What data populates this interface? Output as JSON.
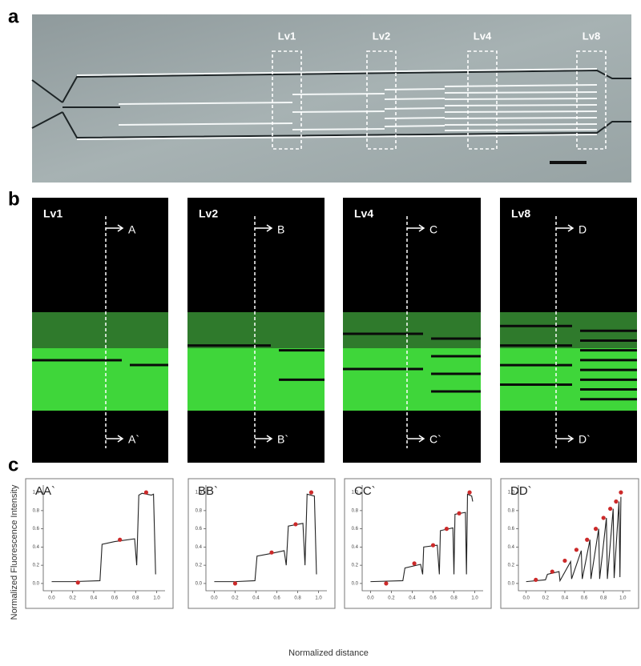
{
  "panel_a": {
    "label": "a",
    "regions": [
      "Lv1",
      "Lv2",
      "Lv4",
      "Lv8"
    ]
  },
  "panel_b": {
    "label": "b",
    "images": [
      {
        "title": "Lv1",
        "top": "A",
        "bottom": "A`"
      },
      {
        "title": "Lv2",
        "top": "B",
        "bottom": "B`"
      },
      {
        "title": "Lv4",
        "top": "C",
        "bottom": "C`"
      },
      {
        "title": "Lv8",
        "top": "D",
        "bottom": "D`"
      }
    ]
  },
  "panel_c": {
    "label": "c",
    "ylabel": "Normalized Fluorescence Intensity",
    "xlabel": "Normalized distance"
  },
  "chart_data": [
    {
      "type": "line",
      "title": "AA`",
      "xlim": [
        -0.08,
        1.08
      ],
      "ylim": [
        -0.08,
        1.08
      ],
      "xticks": [
        {
          "value": 0,
          "label": "0.0"
        },
        {
          "value": 0.2,
          "label": "0.2"
        },
        {
          "value": 0.4,
          "label": "0.4"
        },
        {
          "value": 0.6,
          "label": "0.6"
        },
        {
          "value": 0.8,
          "label": "0.8"
        },
        {
          "value": 1,
          "label": "1.0"
        }
      ],
      "yticks": [
        {
          "value": 0,
          "label": "0.0"
        },
        {
          "value": 0.2,
          "label": "0.2"
        },
        {
          "value": 0.4,
          "label": "0.4"
        },
        {
          "value": 0.6,
          "label": "0.6"
        },
        {
          "value": 0.8,
          "label": "0.8"
        },
        {
          "value": 1,
          "label": "1.0"
        }
      ],
      "series": [
        {
          "color": "#222222",
          "x": [
            0,
            0.2,
            0.46,
            0.48,
            0.6,
            0.79,
            0.81,
            0.83,
            0.86,
            0.95,
            0.97,
            0.99
          ],
          "values": [
            0.02,
            0.02,
            0.03,
            0.43,
            0.46,
            0.49,
            0.2,
            0.97,
            0.99,
            0.97,
            0.98,
            0.1
          ]
        }
      ],
      "points": {
        "color": "#cc2a2a",
        "x": [
          0.25,
          0.65,
          0.9
        ],
        "values": [
          0.01,
          0.48,
          1.0
        ]
      }
    },
    {
      "type": "line",
      "title": "BB`",
      "xlim": [
        -0.08,
        1.08
      ],
      "ylim": [
        -0.08,
        1.08
      ],
      "xticks": [
        {
          "value": 0,
          "label": "0.0"
        },
        {
          "value": 0.2,
          "label": "0.2"
        },
        {
          "value": 0.4,
          "label": "0.4"
        },
        {
          "value": 0.6,
          "label": "0.6"
        },
        {
          "value": 0.8,
          "label": "0.8"
        },
        {
          "value": 1,
          "label": "1.0"
        }
      ],
      "yticks": [
        {
          "value": 0,
          "label": "0.0"
        },
        {
          "value": 0.2,
          "label": "0.2"
        },
        {
          "value": 0.4,
          "label": "0.4"
        },
        {
          "value": 0.6,
          "label": "0.6"
        },
        {
          "value": 0.8,
          "label": "0.8"
        },
        {
          "value": 1,
          "label": "1.0"
        }
      ],
      "series": [
        {
          "color": "#222222",
          "x": [
            0,
            0.2,
            0.39,
            0.41,
            0.55,
            0.67,
            0.69,
            0.71,
            0.85,
            0.87,
            0.89,
            0.96,
            0.98
          ],
          "values": [
            0.02,
            0.02,
            0.03,
            0.3,
            0.33,
            0.36,
            0.2,
            0.63,
            0.66,
            0.2,
            0.98,
            0.96,
            0.1
          ]
        }
      ],
      "points": {
        "color": "#cc2a2a",
        "x": [
          0.2,
          0.55,
          0.78,
          0.93
        ],
        "values": [
          0.0,
          0.34,
          0.65,
          1.0
        ]
      }
    },
    {
      "type": "line",
      "title": "CC`",
      "xlim": [
        -0.08,
        1.08
      ],
      "ylim": [
        -0.08,
        1.08
      ],
      "xticks": [
        {
          "value": 0,
          "label": "0.0"
        },
        {
          "value": 0.2,
          "label": "0.2"
        },
        {
          "value": 0.4,
          "label": "0.4"
        },
        {
          "value": 0.6,
          "label": "0.6"
        },
        {
          "value": 0.8,
          "label": "0.8"
        },
        {
          "value": 1,
          "label": "1.0"
        }
      ],
      "yticks": [
        {
          "value": 0,
          "label": "0.0"
        },
        {
          "value": 0.2,
          "label": "0.2"
        },
        {
          "value": 0.4,
          "label": "0.4"
        },
        {
          "value": 0.6,
          "label": "0.6"
        },
        {
          "value": 0.8,
          "label": "0.8"
        },
        {
          "value": 1,
          "label": "1.0"
        }
      ],
      "series": [
        {
          "color": "#222222",
          "x": [
            0,
            0.31,
            0.33,
            0.48,
            0.5,
            0.51,
            0.64,
            0.66,
            0.67,
            0.79,
            0.8,
            0.81,
            0.91,
            0.92,
            0.93,
            0.97,
            0.98
          ],
          "values": [
            0.02,
            0.03,
            0.17,
            0.21,
            0.1,
            0.4,
            0.42,
            0.1,
            0.58,
            0.61,
            0.1,
            0.76,
            0.78,
            0.1,
            0.98,
            0.96,
            0.9
          ]
        }
      ],
      "points": {
        "color": "#cc2a2a",
        "x": [
          0.15,
          0.42,
          0.6,
          0.73,
          0.85,
          0.95
        ],
        "values": [
          0.0,
          0.22,
          0.42,
          0.6,
          0.77,
          1.0
        ]
      }
    },
    {
      "type": "line",
      "title": "DD`",
      "xlim": [
        -0.08,
        1.08
      ],
      "ylim": [
        -0.08,
        1.08
      ],
      "xticks": [
        {
          "value": 0,
          "label": "0.0"
        },
        {
          "value": 0.2,
          "label": "0.2"
        },
        {
          "value": 0.4,
          "label": "0.4"
        },
        {
          "value": 0.6,
          "label": "0.6"
        },
        {
          "value": 0.8,
          "label": "0.8"
        },
        {
          "value": 1,
          "label": "1.0"
        }
      ],
      "yticks": [
        {
          "value": 0,
          "label": "0.0"
        },
        {
          "value": 0.2,
          "label": "0.2"
        },
        {
          "value": 0.4,
          "label": "0.4"
        },
        {
          "value": 0.6,
          "label": "0.6"
        },
        {
          "value": 0.8,
          "label": "0.8"
        },
        {
          "value": 1,
          "label": "1.0"
        }
      ],
      "series": [
        {
          "color": "#222222",
          "x": [
            0,
            0.2,
            0.22,
            0.34,
            0.35,
            0.46,
            0.47,
            0.57,
            0.58,
            0.66,
            0.67,
            0.75,
            0.76,
            0.83,
            0.84,
            0.9,
            0.91,
            0.96,
            0.97,
            0.98
          ],
          "values": [
            0.02,
            0.04,
            0.1,
            0.13,
            0.03,
            0.24,
            0.05,
            0.36,
            0.05,
            0.48,
            0.05,
            0.6,
            0.05,
            0.72,
            0.05,
            0.82,
            0.06,
            0.9,
            0.07,
            0.95
          ]
        }
      ],
      "points": {
        "color": "#cc2a2a",
        "x": [
          0.1,
          0.27,
          0.4,
          0.52,
          0.63,
          0.72,
          0.8,
          0.87,
          0.93,
          0.98
        ],
        "values": [
          0.04,
          0.13,
          0.25,
          0.37,
          0.48,
          0.6,
          0.72,
          0.82,
          0.9,
          1.0
        ]
      }
    }
  ]
}
